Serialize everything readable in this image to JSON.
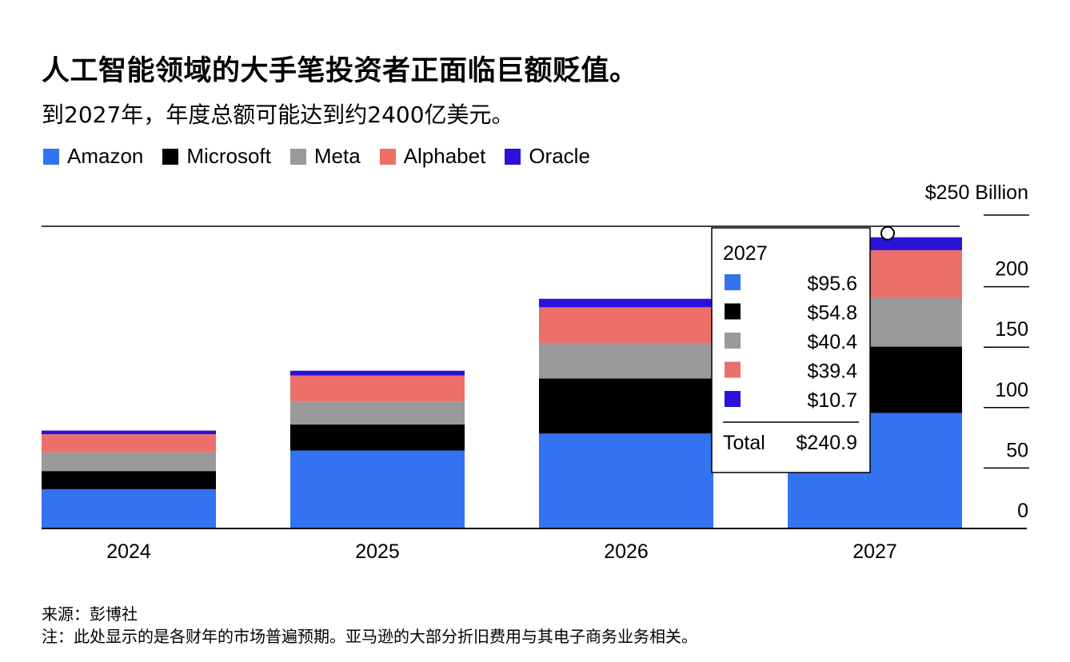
{
  "header": {
    "title": "人工智能领域的大手笔投资者正面临巨额贬值。",
    "subtitle": "到2027年，年度总额可能达到约2400亿美元。"
  },
  "chart_data": {
    "type": "bar",
    "stacked": true,
    "categories": [
      "2024",
      "2025",
      "2026",
      "2027"
    ],
    "series": [
      {
        "name": "Amazon",
        "color": "#3373f2",
        "values": [
          32.5,
          64.5,
          78.5,
          95.6
        ]
      },
      {
        "name": "Microsoft",
        "color": "#000000",
        "values": [
          15.0,
          21.5,
          45.5,
          54.8
        ]
      },
      {
        "name": "Meta",
        "color": "#999999",
        "values": [
          15.5,
          19.0,
          29.5,
          40.4
        ]
      },
      {
        "name": "Alphabet",
        "color": "#ec6f69",
        "values": [
          15.0,
          21.5,
          29.5,
          39.4
        ]
      },
      {
        "name": "Oracle",
        "color": "#2a12d9",
        "values": [
          3.0,
          4.0,
          7.0,
          10.7
        ]
      }
    ],
    "yaxis": {
      "ylim": [
        0,
        250
      ],
      "ticks": [
        "0",
        "50",
        "100",
        "150",
        "200"
      ],
      "top_label": "$250 Billion",
      "position": "right"
    },
    "legend_position": "top-left",
    "tooltip": {
      "category": "2027",
      "values": [
        "$95.6",
        "$54.8",
        "$40.4",
        "$39.4",
        "$10.7"
      ],
      "total_label": "Total",
      "total_value": "$240.9"
    }
  },
  "footer": {
    "source": "来源：彭博社",
    "note": "注：此处显示的是各财年的市场普遍预期。亚马逊的大部分折旧费用与其电子商务业务相关。"
  }
}
